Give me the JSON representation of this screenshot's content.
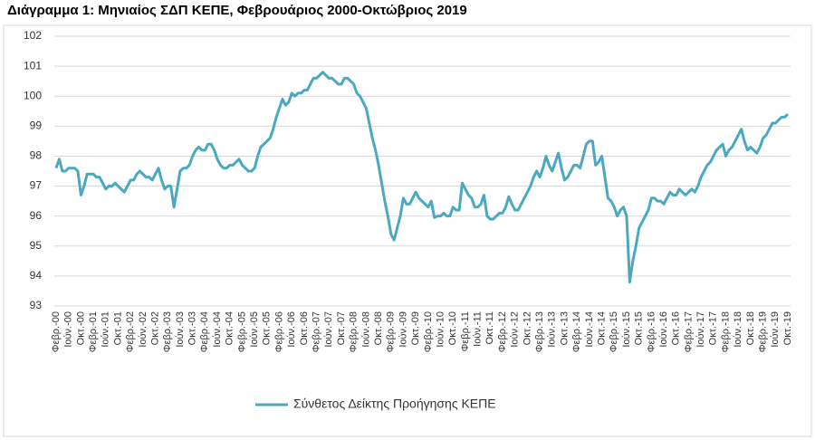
{
  "chart_data": {
    "type": "line",
    "title": "Διάγραμμα 1: Μηνιαίος ΣΔΠ ΚΕΠΕ, Φεβρουάριος 2000-Οκτώβριος 2019",
    "categories": [
      "Φεβρ.-00",
      null,
      null,
      null,
      "Ιούν.-00",
      null,
      null,
      null,
      "Οκτ.-00",
      null,
      null,
      null,
      "Φεβρ.-01",
      null,
      null,
      null,
      "Ιούν.-01",
      null,
      null,
      null,
      "Οκτ.-01",
      null,
      null,
      null,
      "Φεβρ.-02",
      null,
      null,
      null,
      "Ιούν.-02",
      null,
      null,
      null,
      "Οκτ.-02",
      null,
      null,
      null,
      "Φεβρ.-03",
      null,
      null,
      null,
      "Ιούν.-03",
      null,
      null,
      null,
      "Οκτ.-03",
      null,
      null,
      null,
      "Φεβρ.-04",
      null,
      null,
      null,
      "Ιούν.-04",
      null,
      null,
      null,
      "Οκτ.-04",
      null,
      null,
      null,
      "Φεβρ.-05",
      null,
      null,
      null,
      "Ιούν.-05",
      null,
      null,
      null,
      "Οκτ.-05",
      null,
      null,
      null,
      "Φεβρ.-06",
      null,
      null,
      null,
      "Ιούν.-06",
      null,
      null,
      null,
      "Οκτ.-06",
      null,
      null,
      null,
      "Φεβρ.-07",
      null,
      null,
      null,
      "Ιούν.-07",
      null,
      null,
      null,
      "Οκτ.-07",
      null,
      null,
      null,
      "Φεβρ.-08",
      null,
      null,
      null,
      "Ιούν.-08",
      null,
      null,
      null,
      "Οκτ.-08",
      null,
      null,
      null,
      "Φεβρ.-09",
      null,
      null,
      null,
      "Ιούν.-09",
      null,
      null,
      null,
      "Οκτ.-09",
      null,
      null,
      null,
      "Φεβρ.-10",
      null,
      null,
      null,
      "Ιούν.-10",
      null,
      null,
      null,
      "Οκτ.-10",
      null,
      null,
      null,
      "Φεβρ.-11",
      null,
      null,
      null,
      "Ιούν.-11",
      null,
      null,
      null,
      "Οκτ.-11",
      null,
      null,
      null,
      "Φεβρ.-12",
      null,
      null,
      null,
      "Ιούν.-12",
      null,
      null,
      null,
      "Οκτ.-12",
      null,
      null,
      null,
      "Φεβρ.-13",
      null,
      null,
      null,
      "Ιούν.-13",
      null,
      null,
      null,
      "Οκτ.-13",
      null,
      null,
      null,
      "Φεβρ.-14",
      null,
      null,
      null,
      "Ιούν.-14",
      null,
      null,
      null,
      "Οκτ.-14",
      null,
      null,
      null,
      "Φεβρ.-15",
      null,
      null,
      null,
      "Ιούν.-15",
      null,
      null,
      null,
      "Οκτ.-15",
      null,
      null,
      null,
      "Φεβρ.-16",
      null,
      null,
      null,
      "Ιούν.-16",
      null,
      null,
      null,
      "Οκτ.-16",
      null,
      null,
      null,
      "Φεβρ.-17",
      null,
      null,
      null,
      "Ιούν.-17",
      null,
      null,
      null,
      "Οκτ.-17",
      null,
      null,
      null,
      "Φεβρ.-18",
      null,
      null,
      null,
      "Ιούν.-18",
      null,
      null,
      null,
      "Οκτ.-18",
      null,
      null,
      null,
      "Φεβρ.-19",
      null,
      null,
      null,
      "Ιούν.-19",
      null,
      null,
      null,
      "Οκτ.-19"
    ],
    "series": [
      {
        "name": "Σύνθετος Δείκτης Προήγησης ΚΕΠΕ",
        "color": "#4aa9c1",
        "values": [
          97.6,
          97.9,
          97.5,
          97.5,
          97.6,
          97.6,
          97.6,
          97.5,
          96.7,
          97.0,
          97.4,
          97.4,
          97.4,
          97.3,
          97.3,
          97.1,
          96.9,
          97.0,
          97.0,
          97.1,
          97.0,
          96.9,
          96.8,
          97.0,
          97.2,
          97.2,
          97.4,
          97.5,
          97.4,
          97.3,
          97.3,
          97.2,
          97.4,
          97.6,
          97.2,
          96.9,
          97.0,
          97.0,
          96.3,
          96.9,
          97.5,
          97.6,
          97.6,
          97.7,
          98.0,
          98.2,
          98.3,
          98.2,
          98.2,
          98.4,
          98.4,
          98.2,
          97.9,
          97.7,
          97.6,
          97.6,
          97.7,
          97.7,
          97.8,
          97.9,
          97.7,
          97.6,
          97.5,
          97.5,
          97.6,
          98.0,
          98.3,
          98.4,
          98.5,
          98.6,
          98.9,
          99.3,
          99.6,
          99.9,
          99.7,
          99.8,
          100.1,
          100.0,
          100.1,
          100.1,
          100.2,
          100.2,
          100.4,
          100.6,
          100.6,
          100.7,
          100.8,
          100.7,
          100.6,
          100.6,
          100.5,
          100.4,
          100.4,
          100.6,
          100.6,
          100.5,
          100.4,
          100.1,
          100.0,
          99.8,
          99.6,
          99.1,
          98.6,
          98.2,
          97.7,
          97.1,
          96.5,
          96.0,
          95.4,
          95.2,
          95.6,
          96.0,
          96.6,
          96.4,
          96.4,
          96.6,
          96.8,
          96.6,
          96.5,
          96.4,
          96.3,
          96.5,
          95.95,
          96.0,
          96.0,
          96.1,
          96.0,
          96.0,
          96.3,
          96.2,
          96.2,
          97.1,
          96.9,
          96.7,
          96.6,
          96.3,
          96.3,
          96.4,
          96.7,
          96.0,
          95.9,
          95.9,
          96.0,
          96.1,
          96.1,
          96.3,
          96.65,
          96.4,
          96.2,
          96.2,
          96.4,
          96.6,
          96.8,
          97.0,
          97.3,
          97.5,
          97.3,
          97.6,
          98.0,
          97.7,
          97.5,
          97.8,
          98.1,
          97.6,
          97.2,
          97.3,
          97.5,
          97.7,
          97.7,
          97.6,
          98.0,
          98.4,
          98.5,
          98.5,
          97.7,
          97.8,
          98.0,
          97.3,
          96.6,
          96.5,
          96.3,
          96.0,
          96.2,
          96.3,
          96.0,
          93.8,
          94.5,
          95.0,
          95.6,
          95.8,
          96.0,
          96.2,
          96.6,
          96.6,
          96.5,
          96.5,
          96.4,
          96.6,
          96.8,
          96.7,
          96.7,
          96.9,
          96.8,
          96.7,
          96.8,
          96.9,
          96.8,
          97.0,
          97.3,
          97.5,
          97.7,
          97.8,
          98.0,
          98.2,
          98.3,
          98.4,
          98.0,
          98.2,
          98.3,
          98.5,
          98.7,
          98.9,
          98.5,
          98.2,
          98.3,
          98.2,
          98.1,
          98.3,
          98.6,
          98.7,
          98.9,
          99.1,
          99.1,
          99.2,
          99.3,
          99.3,
          99.4
        ]
      }
    ],
    "ylim": [
      93,
      102
    ],
    "yticks": [
      93,
      94,
      95,
      96,
      97,
      98,
      99,
      100,
      101,
      102
    ],
    "grid": true,
    "legend": "bottom"
  }
}
